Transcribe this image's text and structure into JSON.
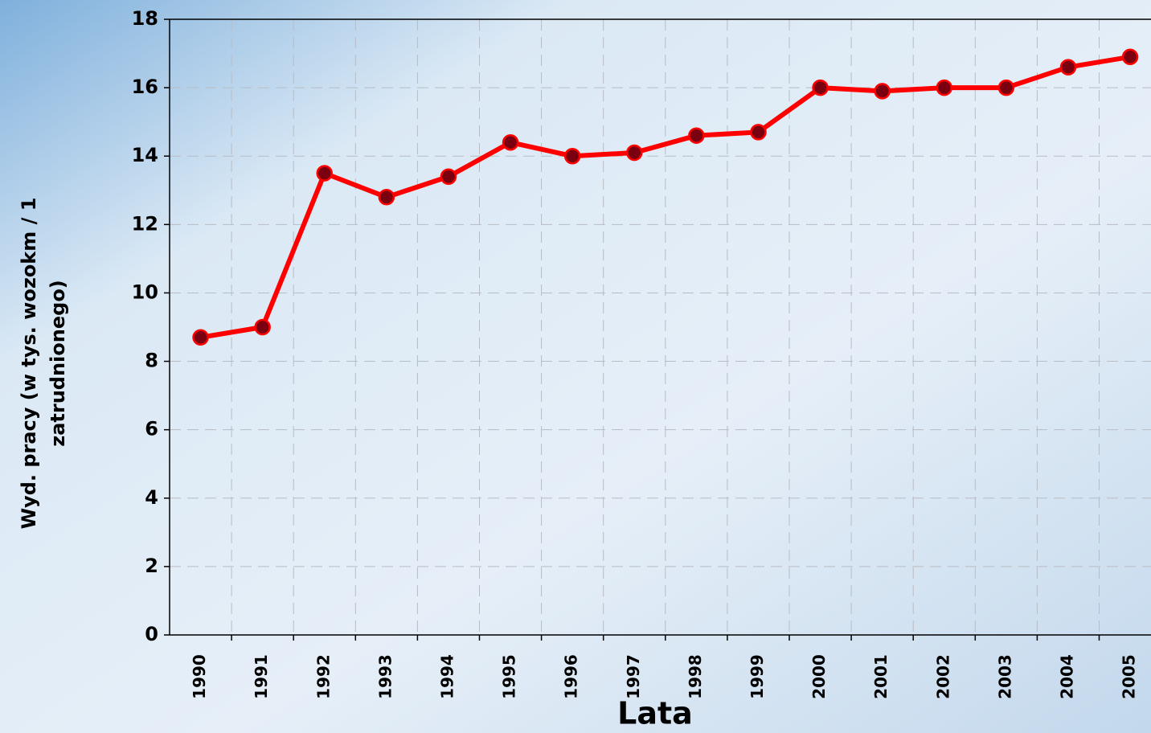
{
  "chart_data": {
    "type": "line",
    "ylabel": [
      "Wyd. pracy (w tys. wozokm / 1",
      "zatrudnionego)"
    ],
    "xlabel": "Lata",
    "categories": [
      "1990",
      "1991",
      "1992",
      "1993",
      "1994",
      "1995",
      "1996",
      "1997",
      "1998",
      "1999",
      "2000",
      "2001",
      "2002",
      "2003",
      "2004",
      "2005"
    ],
    "series": [
      {
        "name": "Wyd. pracy",
        "color": "#ff0000",
        "values": [
          8.7,
          9.0,
          13.5,
          12.8,
          13.4,
          14.4,
          14.0,
          14.1,
          14.6,
          14.7,
          16.0,
          15.9,
          16.0,
          16.0,
          16.6,
          16.9
        ]
      }
    ],
    "ylim": [
      0,
      18
    ],
    "yticks": [
      0,
      2,
      4,
      6,
      8,
      10,
      12,
      14,
      16,
      18
    ],
    "grid": true
  }
}
